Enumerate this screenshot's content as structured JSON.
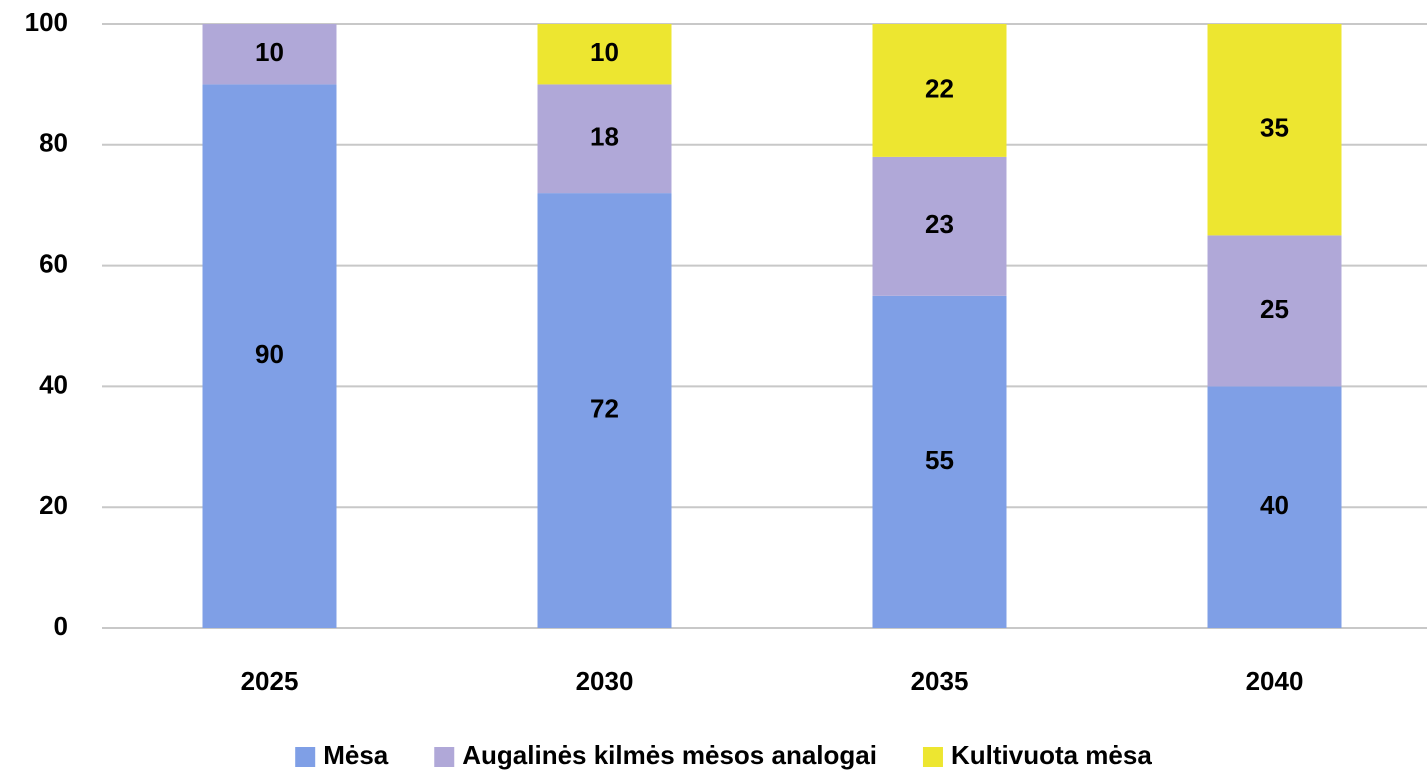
{
  "chart_data": {
    "type": "stacked_bar",
    "categories": [
      "2025",
      "2030",
      "2035",
      "2040"
    ],
    "series": [
      {
        "name": "Mėsa",
        "color": "#7f9fe6",
        "values": [
          90,
          72,
          55,
          40
        ]
      },
      {
        "name": "Augalinės kilmės mėsos analogai",
        "color": "#b0a8d8",
        "values": [
          10,
          18,
          23,
          25
        ]
      },
      {
        "name": "Kultivuota mėsa",
        "color": "#ede630",
        "values": [
          null,
          10,
          22,
          35
        ]
      }
    ],
    "ylim": [
      0,
      100
    ],
    "yticks": [
      0,
      20,
      40,
      60,
      80,
      100
    ],
    "grid": true,
    "legend": "bottom"
  }
}
